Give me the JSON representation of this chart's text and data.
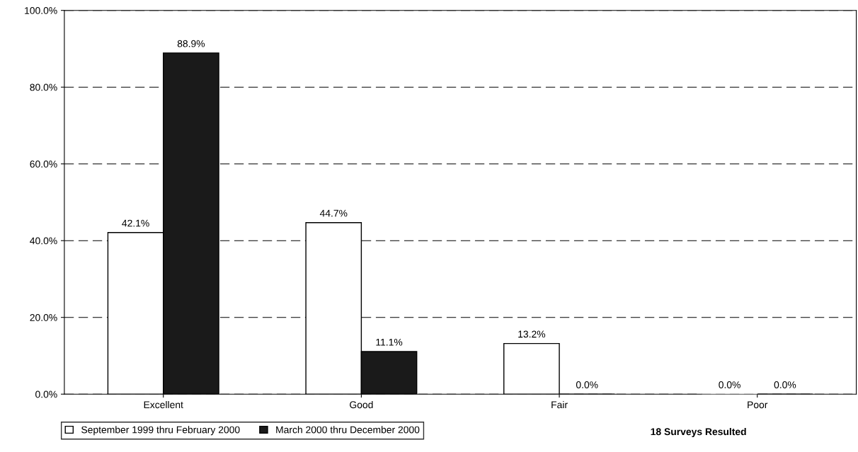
{
  "chart_data": {
    "type": "bar",
    "categories": [
      "Excellent",
      "Good",
      "Fair",
      "Poor"
    ],
    "series": [
      {
        "name": "September 1999 thru February 2000",
        "color": "#ffffff",
        "values": [
          42.1,
          44.7,
          13.2,
          0.0
        ],
        "value_labels": [
          "42.1%",
          "44.7%",
          "13.2%",
          "0.0%"
        ]
      },
      {
        "name": "March 2000 thru December 2000",
        "color": "#1a1a1a",
        "values": [
          88.9,
          11.1,
          0.0,
          0.0
        ],
        "value_labels": [
          "88.9%",
          "11.1%",
          "0.0%",
          "0.0%"
        ]
      }
    ],
    "ylim": [
      0,
      100
    ],
    "yticks": [
      {
        "value": 0,
        "label": "0.0%"
      },
      {
        "value": 20,
        "label": "20.0%"
      },
      {
        "value": 40,
        "label": "40.0%"
      },
      {
        "value": 60,
        "label": "60.0%"
      },
      {
        "value": 80,
        "label": "80.0%"
      },
      {
        "value": 100,
        "label": "100.0%"
      }
    ],
    "grid": "y",
    "legend": "bottom left",
    "annotations": [
      "18 Surveys Resulted"
    ]
  }
}
